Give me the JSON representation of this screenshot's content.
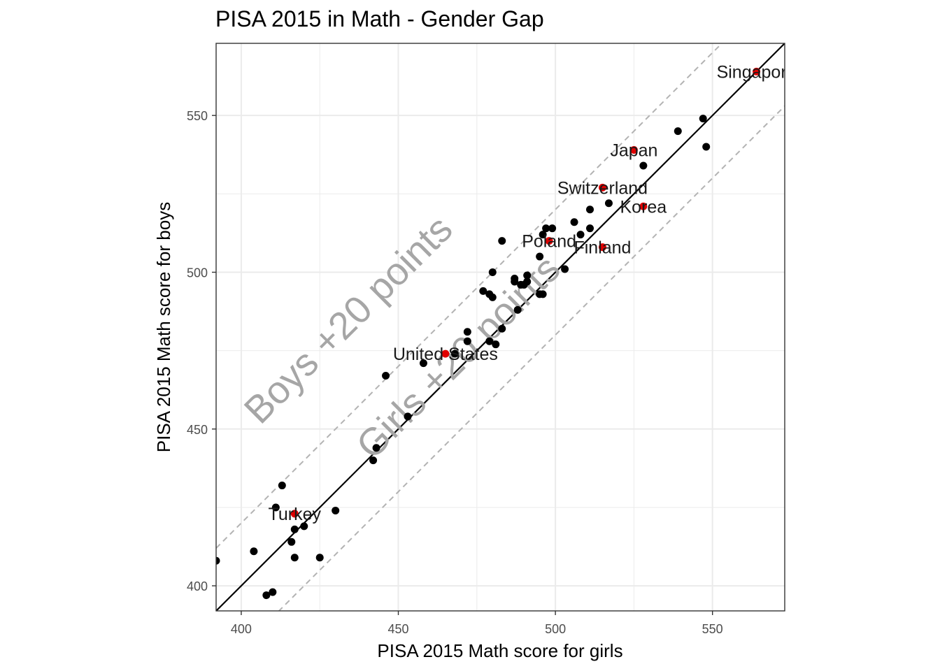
{
  "chart_data": {
    "type": "scatter",
    "title": "PISA 2015 in Math - Gender Gap",
    "xlabel": "PISA 2015 Math score for girls",
    "ylabel": "PISA 2015 Math score for boys",
    "xlim": [
      392,
      573
    ],
    "ylim": [
      392,
      573
    ],
    "x_ticks": [
      400,
      450,
      500,
      550
    ],
    "y_ticks": [
      400,
      450,
      500,
      550
    ],
    "grid": true,
    "colors": {
      "default": "#000000",
      "highlight": "#e00000",
      "grid": "#ebebeb",
      "guide": "#b3b3b3",
      "annotation": "#a6a6a6"
    },
    "reference_lines": [
      {
        "type": "solid",
        "offset": 0
      },
      {
        "type": "dashed",
        "offset": 20
      },
      {
        "type": "dashed",
        "offset": -20
      }
    ],
    "annotations": [
      {
        "text": "Boys +20 points",
        "x": 437,
        "y": 482
      },
      {
        "text": "Girls +20 points",
        "x": 472,
        "y": 470
      }
    ],
    "points": [
      {
        "x": 392,
        "y": 408
      },
      {
        "x": 404,
        "y": 411
      },
      {
        "x": 408,
        "y": 397
      },
      {
        "x": 410,
        "y": 398
      },
      {
        "x": 411,
        "y": 425
      },
      {
        "x": 413,
        "y": 432
      },
      {
        "x": 416,
        "y": 414
      },
      {
        "x": 417,
        "y": 418
      },
      {
        "x": 417,
        "y": 409
      },
      {
        "x": 420,
        "y": 419
      },
      {
        "x": 425,
        "y": 409
      },
      {
        "x": 430,
        "y": 424
      },
      {
        "x": 442,
        "y": 440
      },
      {
        "x": 443,
        "y": 444
      },
      {
        "x": 446,
        "y": 467
      },
      {
        "x": 453,
        "y": 454
      },
      {
        "x": 458,
        "y": 471
      },
      {
        "x": 468,
        "y": 474
      },
      {
        "x": 472,
        "y": 478
      },
      {
        "x": 472,
        "y": 481
      },
      {
        "x": 477,
        "y": 494
      },
      {
        "x": 479,
        "y": 478
      },
      {
        "x": 479,
        "y": 493
      },
      {
        "x": 480,
        "y": 500
      },
      {
        "x": 480,
        "y": 492
      },
      {
        "x": 481,
        "y": 477
      },
      {
        "x": 483,
        "y": 482
      },
      {
        "x": 483,
        "y": 510
      },
      {
        "x": 487,
        "y": 498
      },
      {
        "x": 487,
        "y": 497
      },
      {
        "x": 488,
        "y": 488
      },
      {
        "x": 489,
        "y": 496
      },
      {
        "x": 490,
        "y": 496
      },
      {
        "x": 491,
        "y": 497
      },
      {
        "x": 491,
        "y": 499
      },
      {
        "x": 495,
        "y": 493
      },
      {
        "x": 495,
        "y": 505
      },
      {
        "x": 496,
        "y": 493
      },
      {
        "x": 496,
        "y": 512
      },
      {
        "x": 497,
        "y": 514
      },
      {
        "x": 499,
        "y": 514
      },
      {
        "x": 503,
        "y": 501
      },
      {
        "x": 506,
        "y": 516
      },
      {
        "x": 508,
        "y": 512
      },
      {
        "x": 511,
        "y": 514
      },
      {
        "x": 511,
        "y": 520
      },
      {
        "x": 517,
        "y": 522
      },
      {
        "x": 528,
        "y": 534
      },
      {
        "x": 539,
        "y": 545
      },
      {
        "x": 547,
        "y": 549
      },
      {
        "x": 548,
        "y": 540
      }
    ],
    "highlighted": [
      {
        "name": "Singapore",
        "x": 564,
        "y": 564
      },
      {
        "name": "Japan",
        "x": 525,
        "y": 539
      },
      {
        "name": "Switzerland",
        "x": 515,
        "y": 527
      },
      {
        "name": "Korea",
        "x": 528,
        "y": 521
      },
      {
        "name": "Poland",
        "x": 498,
        "y": 510
      },
      {
        "name": "Finland",
        "x": 515,
        "y": 508
      },
      {
        "name": "United States",
        "x": 465,
        "y": 474
      },
      {
        "name": "Turkey",
        "x": 417,
        "y": 423
      }
    ]
  }
}
